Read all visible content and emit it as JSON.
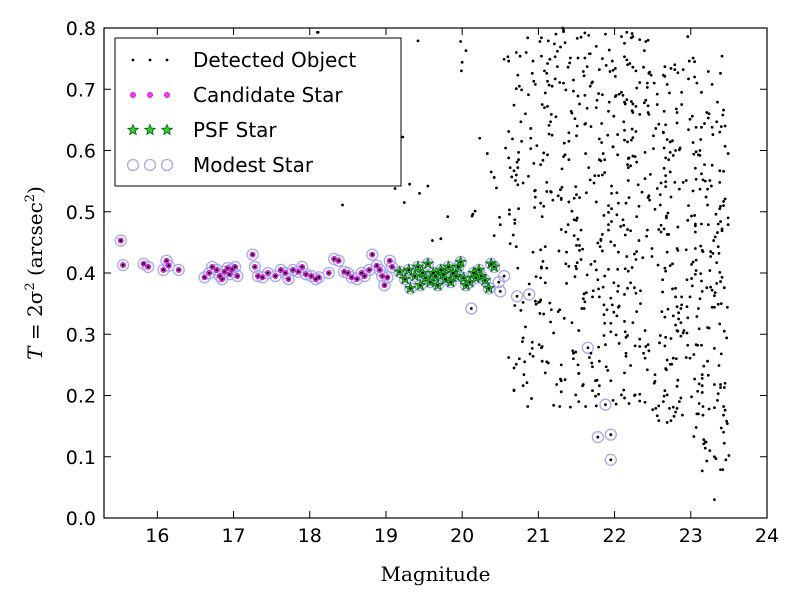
{
  "chart_data": {
    "type": "scatter",
    "title": "",
    "xlabel": "Magnitude",
    "ylabel_parts": {
      "var": "T",
      "eq": " = 2σ",
      "sup": "2",
      "unit_open": " (arcsec",
      "unit_sup": "2",
      "unit_close": ")"
    },
    "xlim": [
      15.3,
      24
    ],
    "ylim": [
      0.0,
      0.8
    ],
    "xticks": [
      "16",
      "17",
      "18",
      "19",
      "20",
      "21",
      "22",
      "23",
      "24"
    ],
    "yticks": [
      "0.0",
      "0.1",
      "0.2",
      "0.3",
      "0.4",
      "0.5",
      "0.6",
      "0.7",
      "0.8"
    ],
    "grid": false,
    "legend_position": "top-left",
    "colors": {
      "detected": "#000000",
      "candidate_fill": "#ff33ff",
      "psf_fill": "#33cc33",
      "psf_edge": "#006400",
      "modest_edge": "#a8a8f0"
    },
    "series": [
      {
        "name": "Detected Object",
        "marker": "dot",
        "points": []
      },
      {
        "name": "Candidate Star",
        "marker": "small-circle",
        "points": [
          [
            15.52,
            0.453
          ],
          [
            15.55,
            0.413
          ],
          [
            15.82,
            0.415
          ],
          [
            15.88,
            0.41
          ],
          [
            16.08,
            0.405
          ],
          [
            16.12,
            0.42
          ],
          [
            16.15,
            0.412
          ],
          [
            16.28,
            0.405
          ],
          [
            16.62,
            0.393
          ],
          [
            16.68,
            0.4
          ],
          [
            16.72,
            0.41
          ],
          [
            16.78,
            0.405
          ],
          [
            16.82,
            0.395
          ],
          [
            16.85,
            0.39
          ],
          [
            16.88,
            0.402
          ],
          [
            16.92,
            0.408
          ],
          [
            16.95,
            0.398
          ],
          [
            16.98,
            0.406
          ],
          [
            17.02,
            0.41
          ],
          [
            17.05,
            0.395
          ],
          [
            17.25,
            0.43
          ],
          [
            17.28,
            0.41
          ],
          [
            17.32,
            0.395
          ],
          [
            17.38,
            0.393
          ],
          [
            17.45,
            0.4
          ],
          [
            17.55,
            0.395
          ],
          [
            17.62,
            0.405
          ],
          [
            17.68,
            0.4
          ],
          [
            17.72,
            0.39
          ],
          [
            17.78,
            0.405
          ],
          [
            17.85,
            0.402
          ],
          [
            17.9,
            0.41
          ],
          [
            17.95,
            0.398
          ],
          [
            18.02,
            0.395
          ],
          [
            18.08,
            0.39
          ],
          [
            18.12,
            0.393
          ],
          [
            18.25,
            0.4
          ],
          [
            18.32,
            0.423
          ],
          [
            18.38,
            0.42
          ],
          [
            18.45,
            0.402
          ],
          [
            18.5,
            0.4
          ],
          [
            18.55,
            0.393
          ],
          [
            18.62,
            0.39
          ],
          [
            18.68,
            0.4
          ],
          [
            18.72,
            0.395
          ],
          [
            18.78,
            0.405
          ],
          [
            18.82,
            0.43
          ],
          [
            18.88,
            0.412
          ],
          [
            18.92,
            0.405
          ],
          [
            18.95,
            0.395
          ],
          [
            18.98,
            0.38
          ],
          [
            19.02,
            0.393
          ],
          [
            19.05,
            0.42
          ],
          [
            19.08,
            0.41
          ]
        ]
      },
      {
        "name": "PSF Star",
        "marker": "star",
        "points": [
          [
            19.18,
            0.402
          ],
          [
            19.25,
            0.39
          ],
          [
            19.3,
            0.405
          ],
          [
            19.32,
            0.375
          ],
          [
            19.38,
            0.395
          ],
          [
            19.42,
            0.41
          ],
          [
            19.45,
            0.38
          ],
          [
            19.48,
            0.4
          ],
          [
            19.52,
            0.392
          ],
          [
            19.55,
            0.415
          ],
          [
            19.58,
            0.385
          ],
          [
            19.62,
            0.4
          ],
          [
            19.65,
            0.395
          ],
          [
            19.68,
            0.38
          ],
          [
            19.72,
            0.405
          ],
          [
            19.75,
            0.398
          ],
          [
            19.78,
            0.39
          ],
          [
            19.82,
            0.41
          ],
          [
            19.85,
            0.385
          ],
          [
            19.88,
            0.4
          ],
          [
            19.92,
            0.395
          ],
          [
            19.95,
            0.41
          ],
          [
            19.98,
            0.418
          ],
          [
            20.02,
            0.392
          ],
          [
            20.05,
            0.38
          ],
          [
            20.1,
            0.385
          ],
          [
            20.15,
            0.4
          ],
          [
            20.18,
            0.392
          ],
          [
            20.22,
            0.405
          ],
          [
            20.25,
            0.395
          ],
          [
            20.3,
            0.388
          ],
          [
            20.35,
            0.375
          ],
          [
            20.38,
            0.415
          ],
          [
            20.42,
            0.41
          ]
        ]
      },
      {
        "name": "Modest Star",
        "marker": "open-circle",
        "points": [
          [
            20.48,
            0.385
          ],
          [
            20.5,
            0.37
          ],
          [
            20.55,
            0.395
          ],
          [
            20.72,
            0.362
          ],
          [
            20.88,
            0.365
          ],
          [
            20.12,
            0.342
          ],
          [
            21.65,
            0.278
          ],
          [
            21.78,
            0.132
          ],
          [
            21.88,
            0.185
          ],
          [
            21.95,
            0.136
          ],
          [
            21.95,
            0.095
          ]
        ]
      }
    ]
  }
}
